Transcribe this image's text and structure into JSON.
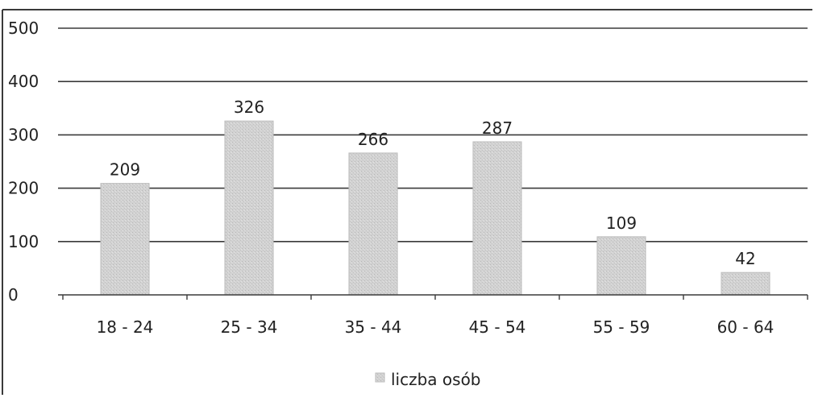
{
  "chart_data": {
    "type": "bar",
    "categories": [
      "18 - 24",
      "25 - 34",
      "35 - 44",
      "45 - 54",
      "55 - 59",
      "60 - 64"
    ],
    "series": [
      {
        "name": "liczba osób",
        "values": [
          209,
          326,
          266,
          287,
          109,
          42
        ]
      }
    ],
    "data_labels": [
      "209",
      "326",
      "266",
      "287",
      "109",
      "42"
    ],
    "y_ticks": [
      "0",
      "100",
      "200",
      "300",
      "400",
      "500"
    ],
    "ylim": [
      0,
      500
    ],
    "grid": true,
    "legend_position": "bottom",
    "colors": {
      "bar": "#cfcfcf",
      "bar_edge": "#bdbdbd",
      "grid": "#3a3a3a",
      "axis": "#3a3a3a",
      "text": "#222222"
    }
  }
}
